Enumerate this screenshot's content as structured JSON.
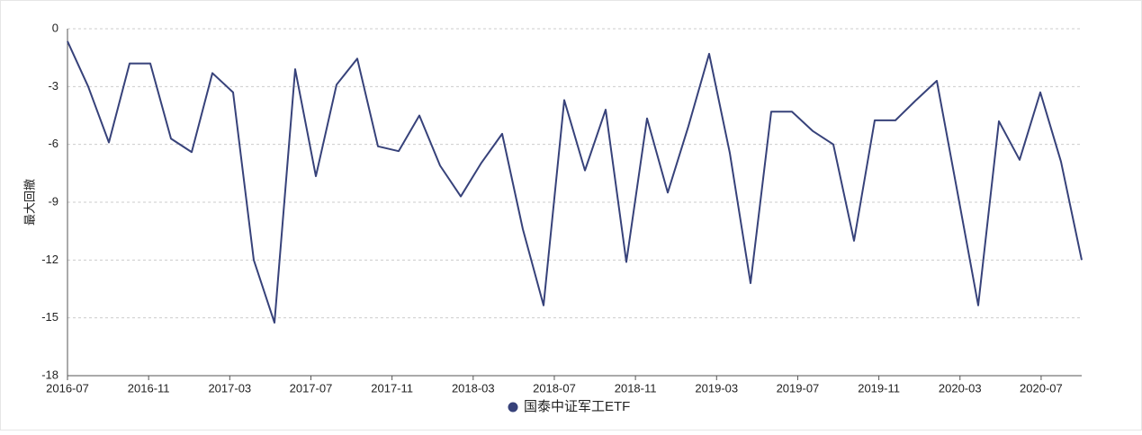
{
  "chart_data": {
    "type": "line",
    "ylabel": "最大回撤",
    "xticks": [
      "2016-07",
      "2016-11",
      "2017-03",
      "2017-07",
      "2017-11",
      "2018-03",
      "2018-07",
      "2018-11",
      "2019-03",
      "2019-07",
      "2019-11",
      "2020-03",
      "2020-07"
    ],
    "series": [
      {
        "name": "国泰中证军工ETF",
        "color": "#37427a",
        "values": [
          -0.65,
          -3.0,
          -5.9,
          -1.8,
          -1.8,
          -5.7,
          -6.4,
          -2.3,
          -3.3,
          -12.0,
          -15.25,
          -2.1,
          -7.65,
          -2.9,
          -1.55,
          -6.1,
          -6.35,
          -4.5,
          -7.1,
          -8.7,
          -6.95,
          -5.45,
          -10.4,
          -14.35,
          -3.7,
          -7.35,
          -4.2,
          -12.1,
          -4.65,
          -8.5,
          -5.05,
          -1.3,
          -6.45,
          -13.2,
          -4.3,
          -4.3,
          -5.3,
          -6.0,
          -11.0,
          -4.75,
          -4.75,
          -3.7,
          -2.7,
          -8.5,
          -14.35,
          -4.8,
          -6.8,
          -3.3,
          -6.9,
          -12.0
        ]
      }
    ],
    "ylim": [
      -18,
      0
    ],
    "yticks": [
      0,
      -3,
      -6,
      -9,
      -12,
      -15,
      -18
    ],
    "grid": true,
    "legend": "bottom"
  }
}
